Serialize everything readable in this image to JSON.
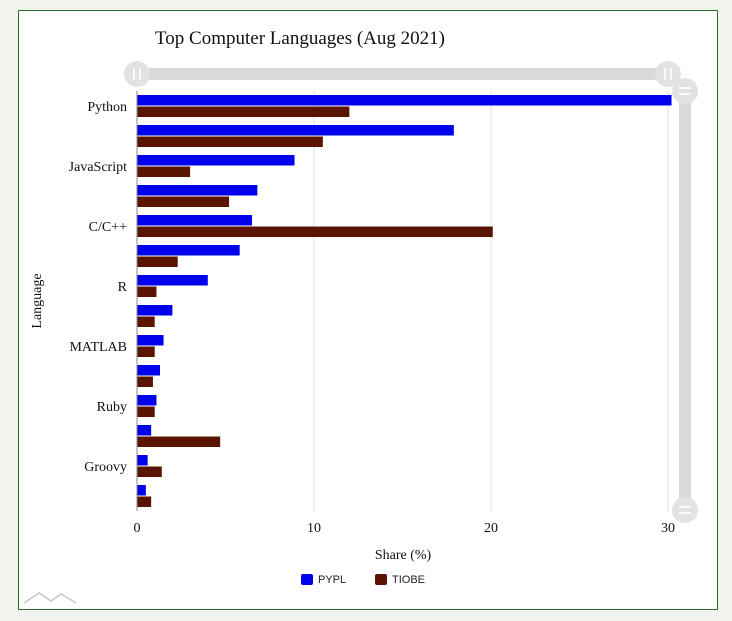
{
  "chart_data": {
    "type": "bar",
    "orientation": "horizontal",
    "title": "Top Computer Languages (Aug 2021)",
    "xlabel": "Share (%)",
    "ylabel": "Language",
    "xlim": [
      0,
      30
    ],
    "xticks": [
      0,
      10,
      20,
      30
    ],
    "grid": true,
    "legend_position": "bottom",
    "categories": [
      "Python",
      "",
      "JavaScript",
      "",
      "C/C++",
      "",
      "R",
      "",
      "MATLAB",
      "",
      "Ruby",
      "",
      "Groovy",
      ""
    ],
    "series": [
      {
        "name": "PYPL",
        "color": "#0000ee",
        "values": [
          30.2,
          17.9,
          8.9,
          6.8,
          6.5,
          5.8,
          4.0,
          2.0,
          1.5,
          1.3,
          1.1,
          0.8,
          0.6,
          0.5
        ]
      },
      {
        "name": "TIOBE",
        "color": "#5a1400",
        "values": [
          12.0,
          10.5,
          3.0,
          5.2,
          20.1,
          2.3,
          1.1,
          1.0,
          1.0,
          0.9,
          1.0,
          4.7,
          1.4,
          0.8
        ]
      }
    ]
  }
}
